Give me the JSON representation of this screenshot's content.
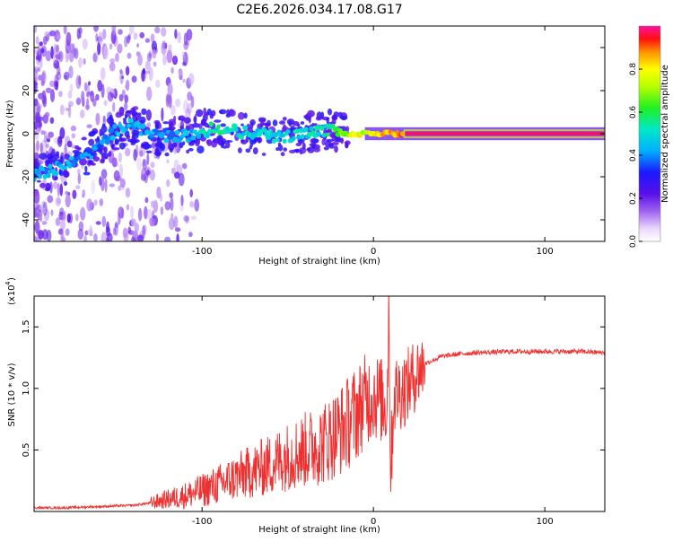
{
  "title": "C2E6.2026.034.17.08.G17",
  "chart_data": [
    {
      "type": "heatmap",
      "name": "spectrogram",
      "xlabel": "Height of straight line (km)",
      "ylabel": "Frequency (Hz)",
      "xlim": [
        -198,
        135
      ],
      "ylim": [
        -50,
        50
      ],
      "xticks": [
        -100,
        0,
        100
      ],
      "xtick_labels": [
        "-100",
        "0",
        "100"
      ],
      "yticks": [
        -40,
        -20,
        0,
        20,
        40
      ],
      "ytick_labels": [
        "-40",
        "-20",
        "0",
        "20",
        "40"
      ],
      "colorbar": {
        "label": "Normalized spectral amplitude",
        "range": [
          0.0,
          1.0
        ],
        "ticks": [
          0.0,
          0.2,
          0.4,
          0.6,
          0.8
        ],
        "tick_labels": [
          "0.0",
          "0.2",
          "0.4",
          "0.6",
          "0.8"
        ]
      },
      "ridge": {
        "x": [
          -198,
          -185,
          -170,
          -160,
          -150,
          -140,
          -130,
          -120,
          -110,
          -100,
          -90,
          -80,
          -70,
          -60,
          -50,
          -40,
          -30,
          -25,
          -20,
          -15,
          -10,
          -5,
          0,
          5,
          10,
          20,
          40,
          60,
          80,
          100,
          120,
          135
        ],
        "freq": [
          -19,
          -16,
          -11,
          -6,
          2,
          4,
          0,
          -1,
          -1,
          1,
          3,
          1,
          0,
          -1,
          -1,
          0,
          1,
          2,
          1,
          0,
          -1,
          0,
          0,
          0,
          0,
          0,
          0,
          0,
          0,
          0,
          0,
          0
        ],
        "amplitude": [
          0.5,
          0.5,
          0.45,
          0.45,
          0.5,
          0.5,
          0.45,
          0.45,
          0.5,
          0.55,
          0.6,
          0.55,
          0.55,
          0.55,
          0.55,
          0.55,
          0.6,
          0.6,
          0.7,
          0.75,
          0.85,
          0.8,
          0.85,
          0.9,
          0.9,
          1.0,
          1.0,
          1.0,
          1.0,
          1.0,
          1.0,
          1.0
        ]
      }
    },
    {
      "type": "line",
      "name": "snr",
      "xlabel": "Height of straight line (km)",
      "ylabel": "SNR (10 * v/v)",
      "y_scale_label": "(x10",
      "y_scale_exponent": "4",
      "xlim": [
        -198,
        135
      ],
      "ylim": [
        0,
        1.75
      ],
      "xticks": [
        -100,
        0,
        100
      ],
      "xtick_labels": [
        "-100",
        "0",
        "100"
      ],
      "yticks": [
        0.5,
        1.0,
        1.5
      ],
      "ytick_labels": [
        "0.5",
        "1.0",
        "1.5"
      ],
      "color": "#f03030",
      "series": [
        {
          "name": "SNR",
          "x": [
            -198,
            -180,
            -160,
            -140,
            -130,
            -120,
            -110,
            -100,
            -90,
            -80,
            -70,
            -60,
            -50,
            -40,
            -30,
            -25,
            -20,
            -15,
            -10,
            -5,
            0,
            5,
            8,
            9,
            10,
            12,
            15,
            20,
            25,
            30,
            40,
            50,
            60,
            80,
            100,
            120,
            135
          ],
          "y": [
            0.03,
            0.03,
            0.04,
            0.05,
            0.07,
            0.1,
            0.13,
            0.17,
            0.22,
            0.28,
            0.33,
            0.38,
            0.45,
            0.5,
            0.55,
            0.6,
            0.65,
            0.72,
            0.8,
            0.9,
            0.95,
            0.9,
            0.85,
            1.75,
            0.3,
            0.95,
            0.97,
            1.02,
            1.12,
            1.2,
            1.26,
            1.28,
            1.29,
            1.3,
            1.3,
            1.3,
            1.29
          ]
        }
      ]
    }
  ]
}
